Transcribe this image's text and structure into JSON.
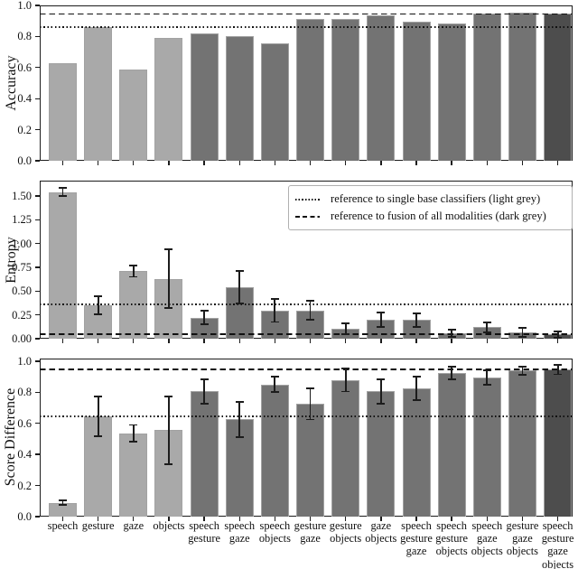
{
  "figure": {
    "background": "#ffffff",
    "frame_color": "#1c1c1c",
    "error_bar_color": "#1c1c1c",
    "reference_line_color": "#111111",
    "bar_colors": {
      "single": "#a9a9a9",
      "pair": "#737373",
      "triple": "#737373",
      "all": "#4d4d4d"
    },
    "color_groups": [
      "single",
      "single",
      "single",
      "single",
      "pair",
      "pair",
      "pair",
      "pair",
      "pair",
      "pair",
      "triple",
      "triple",
      "triple",
      "triple",
      "all"
    ]
  },
  "legend": {
    "items": [
      {
        "style": "dotted",
        "label": "reference to single base classifiers (light grey)"
      },
      {
        "style": "dashed",
        "label": "reference to fusion of all modalities (dark grey)"
      }
    ]
  },
  "chart_data": [
    {
      "type": "bar",
      "ylabel": "Accuracy",
      "ylim": [
        0,
        1.0
      ],
      "yticks": [
        0.0,
        0.2,
        0.4,
        0.6,
        0.8,
        1.0
      ],
      "ytick_labels": [
        "0.0",
        "0.2",
        "0.4",
        "0.6",
        "0.8",
        "1.0"
      ],
      "categories": [
        "speech",
        "gesture",
        "gaze",
        "objects",
        "speech gesture",
        "speech gaze",
        "speech objects",
        "gesture gaze",
        "gesture objects",
        "gaze objects",
        "speech gesture gaze",
        "speech gesture objects",
        "speech gaze objects",
        "gesture gaze objects",
        "speech gesture gaze objects"
      ],
      "values": [
        0.63,
        0.86,
        0.59,
        0.79,
        0.82,
        0.8,
        0.755,
        0.915,
        0.915,
        0.935,
        0.895,
        0.885,
        0.95,
        0.955,
        0.945
      ],
      "errors": null,
      "ref_dotted": 0.86,
      "ref_dashed": 0.945,
      "grid": false,
      "legend_position": "none"
    },
    {
      "type": "bar",
      "ylabel": "Entropy",
      "ylim": [
        0,
        1.66
      ],
      "yticks": [
        0.0,
        0.25,
        0.5,
        0.75,
        1.0,
        1.25,
        1.5
      ],
      "ytick_labels": [
        "0.00",
        "0.25",
        "0.50",
        "0.75",
        "1.00",
        "1.25",
        "1.50"
      ],
      "categories": [
        "speech",
        "gesture",
        "gaze",
        "objects",
        "speech gesture",
        "speech gaze",
        "speech objects",
        "gesture gaze",
        "gesture objects",
        "gaze objects",
        "speech gesture gaze",
        "speech gesture objects",
        "speech gaze objects",
        "gesture gaze objects",
        "speech gesture gaze objects"
      ],
      "values": [
        1.54,
        0.355,
        0.71,
        0.63,
        0.22,
        0.54,
        0.295,
        0.295,
        0.105,
        0.2,
        0.195,
        0.055,
        0.12,
        0.065,
        0.045
      ],
      "errors": [
        0.04,
        0.095,
        0.06,
        0.31,
        0.07,
        0.17,
        0.12,
        0.1,
        0.055,
        0.075,
        0.07,
        0.04,
        0.05,
        0.045,
        0.035
      ],
      "ref_dotted": 0.36,
      "ref_dashed": 0.05,
      "grid": false,
      "legend_position": "upper-right"
    },
    {
      "type": "bar",
      "ylabel": "Score Difference",
      "ylim": [
        0,
        1.017
      ],
      "yticks": [
        0.0,
        0.2,
        0.4,
        0.6,
        0.8,
        1.0
      ],
      "ytick_labels": [
        "0.0",
        "0.2",
        "0.4",
        "0.6",
        "0.8",
        "1.0"
      ],
      "categories": [
        "speech",
        "gesture",
        "gaze",
        "objects",
        "speech gesture",
        "speech gaze",
        "speech objects",
        "gesture gaze",
        "gesture objects",
        "gaze objects",
        "speech gesture gaze",
        "speech gesture objects",
        "speech gaze objects",
        "gesture gaze objects",
        "speech gesture gaze objects"
      ],
      "values": [
        0.09,
        0.645,
        0.535,
        0.555,
        0.805,
        0.625,
        0.85,
        0.725,
        0.88,
        0.805,
        0.825,
        0.925,
        0.895,
        0.94,
        0.945
      ],
      "errors": [
        0.015,
        0.13,
        0.055,
        0.22,
        0.08,
        0.115,
        0.05,
        0.1,
        0.075,
        0.08,
        0.075,
        0.04,
        0.045,
        0.027,
        0.03
      ],
      "ref_dotted": 0.645,
      "ref_dashed": 0.945,
      "grid": false,
      "legend_position": "none"
    }
  ]
}
